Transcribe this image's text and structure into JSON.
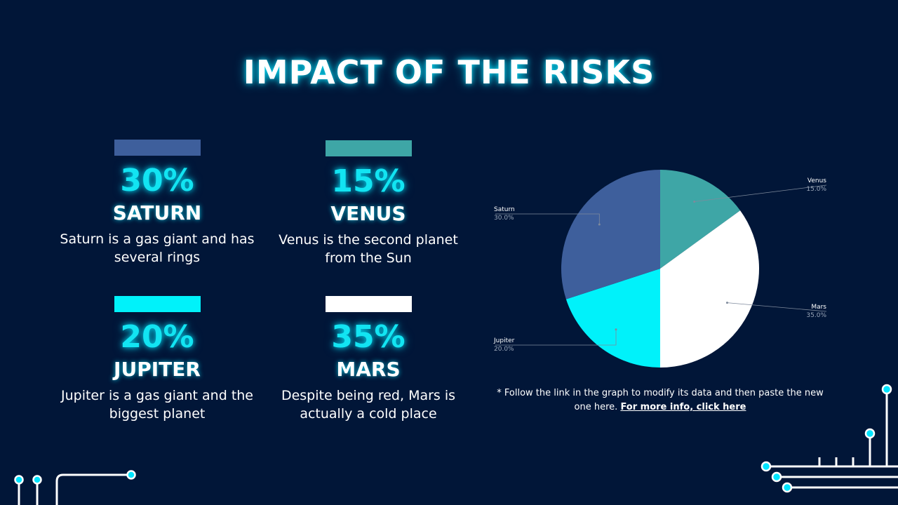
{
  "title": "IMPACT OF THE RISKS",
  "colors": {
    "background": "#011638",
    "saturn": "#3e5f9c",
    "venus": "#3ea6a6",
    "jupiter": "#00f2fa",
    "mars": "#ffffff",
    "accent": "#12e4f2"
  },
  "cards": {
    "saturn": {
      "pct": "30%",
      "name": "SATURN",
      "desc": "Saturn is a gas giant and has several rings"
    },
    "venus": {
      "pct": "15%",
      "name": "VENUS",
      "desc": "Venus is the second planet from the Sun"
    },
    "jupiter": {
      "pct": "20%",
      "name": "JUPITER",
      "desc": "Jupiter is a gas giant and the biggest planet"
    },
    "mars": {
      "pct": "35%",
      "name": "MARS",
      "desc": "Despite being red, Mars is actually a cold place"
    }
  },
  "chart_data": {
    "type": "pie",
    "title": "",
    "categories": [
      "Venus",
      "Mars",
      "Jupiter",
      "Saturn"
    ],
    "values": [
      15.0,
      35.0,
      20.0,
      30.0
    ],
    "labels": [
      "15.0%",
      "35.0%",
      "20.0%",
      "30.0%"
    ],
    "colors": [
      "#3ea6a6",
      "#ffffff",
      "#00f2fa",
      "#3e5f9c"
    ],
    "start": "top",
    "direction": "clockwise"
  },
  "note": {
    "text": "* Follow the link in the graph to modify its data and then paste the new one here.",
    "link": "For more info, click here"
  }
}
